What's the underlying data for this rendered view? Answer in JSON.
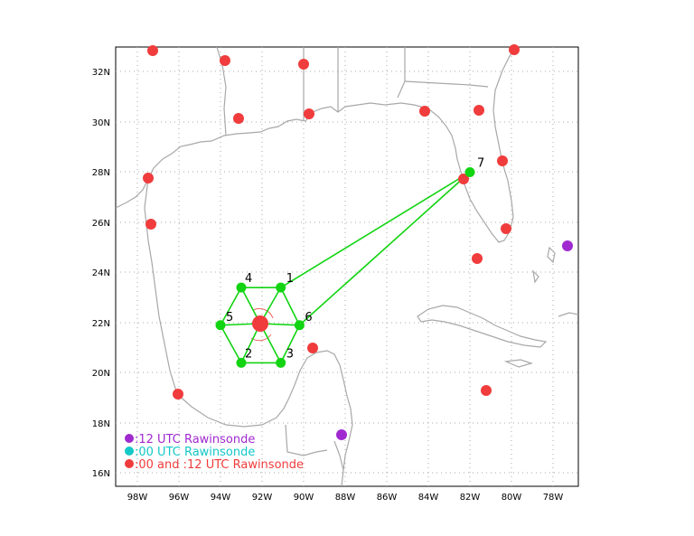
{
  "map": {
    "colors": {
      "land_outline": "#a8a8a8",
      "grid": "#a8a8a8",
      "twelve_utc": "#a02ad0",
      "zero_utc": "#14c8c8",
      "both_utc": "#f03c3c",
      "network": "#12d412"
    },
    "lon_ticks": [
      "98W",
      "96W",
      "94W",
      "92W",
      "90W",
      "88W",
      "86W",
      "84W",
      "82W",
      "80W",
      "78W"
    ],
    "lat_ticks": [
      "32N",
      "30N",
      "28N",
      "26N",
      "24N",
      "22N",
      "20N",
      "18N",
      "16N"
    ],
    "legend": [
      {
        "label": ":12 UTC Rawinsonde",
        "marker": "twelve_utc"
      },
      {
        "label": ":00 UTC Rawinsonde",
        "marker": "zero_utc"
      },
      {
        "label": ":00 and :12 UTC Rawinsonde",
        "marker": "both_utc"
      }
    ],
    "network_points": [
      {
        "label": "1",
        "lon": -91.1,
        "lat": 23.4
      },
      {
        "label": "2",
        "lon": -93.0,
        "lat": 20.4
      },
      {
        "label": "3",
        "lon": -91.1,
        "lat": 20.4
      },
      {
        "label": "4",
        "lon": -93.0,
        "lat": 23.4
      },
      {
        "label": "5",
        "lon": -94.0,
        "lat": 21.9
      },
      {
        "label": "6",
        "lon": -90.2,
        "lat": 21.9
      },
      {
        "label": "7",
        "lon": -82.0,
        "lat": 28.0
      }
    ]
  }
}
